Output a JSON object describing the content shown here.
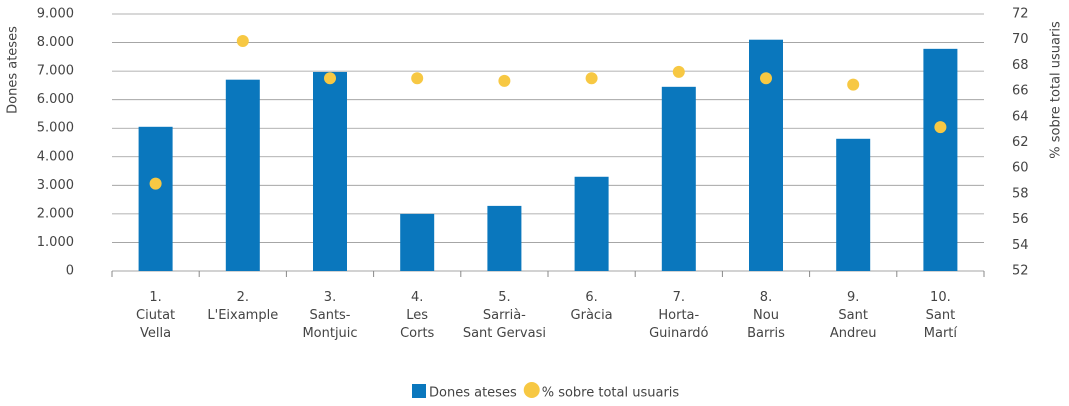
{
  "chart_data": {
    "type": "bar+scatter",
    "y_label": "Dones ateses",
    "y2_label": "% sobre total usuaris",
    "categories": [
      [
        "1.",
        "Ciutat",
        "Vella"
      ],
      [
        "2.",
        "L'Eixample"
      ],
      [
        "3.",
        "Sants-",
        "Montjuic"
      ],
      [
        "4.",
        "Les",
        "Corts"
      ],
      [
        "5.",
        "Sarrià-",
        "Sant Gervasi"
      ],
      [
        "6.",
        "Gràcia"
      ],
      [
        "7.",
        "Horta-",
        "Guinardó"
      ],
      [
        "8.",
        "Nou",
        "Barris"
      ],
      [
        "9.",
        "Sant",
        "Andreu"
      ],
      [
        "10.",
        "Sant",
        "Martí"
      ]
    ],
    "series": [
      {
        "name": "Dones ateses",
        "type": "bar",
        "color": "#0a77bd",
        "values": [
          5050,
          6700,
          6970,
          2000,
          2280,
          3300,
          6450,
          8100,
          4630,
          7780
        ]
      },
      {
        "name": "% sobre total usuaris",
        "type": "scatter",
        "axis": "y2",
        "color": "#f7c843",
        "values": [
          58.8,
          69.9,
          67.0,
          67.0,
          66.8,
          67.0,
          67.5,
          67.0,
          66.5,
          63.2
        ]
      }
    ],
    "ylim": [
      0,
      9000
    ],
    "yticks": [
      0,
      {
        "value": 1000,
        "label": "1.000"
      },
      {
        "value": 2000,
        "label": "2.000"
      },
      {
        "value": 3000,
        "label": "3.000"
      },
      {
        "value": 4000,
        "label": "4.000"
      },
      {
        "value": 5000,
        "label": "5.000"
      },
      {
        "value": 6000,
        "label": "6.000"
      },
      {
        "value": 7000,
        "label": "7.000"
      },
      {
        "value": 8000,
        "label": "8.000"
      },
      {
        "value": 9000,
        "label": "9.000"
      }
    ],
    "y2lim": [
      52,
      72
    ],
    "y2ticks": [
      52,
      54,
      56,
      58,
      60,
      62,
      64,
      66,
      68,
      70,
      72
    ],
    "grid": true,
    "legend": "bottom"
  }
}
